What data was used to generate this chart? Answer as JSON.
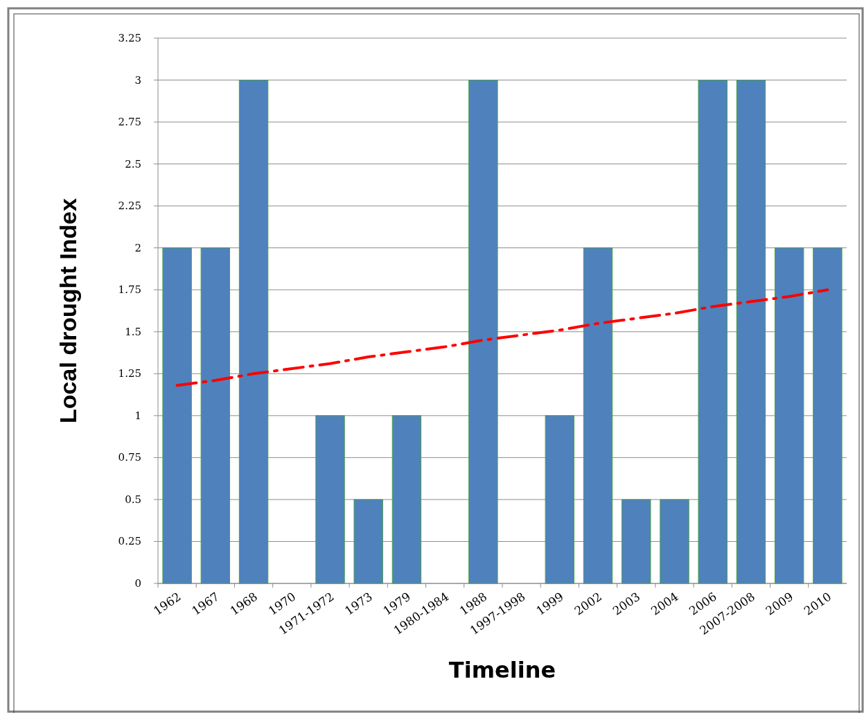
{
  "chart_data": {
    "type": "bar",
    "xlabel": "Timeline",
    "ylabel": "Local drought Index",
    "categories": [
      "1962",
      "1967",
      "1968",
      "1970",
      "1971-1972",
      "1973",
      "1979",
      "1980-1984",
      "1988",
      "1997-1998",
      "1999",
      "2002",
      "2003",
      "2004",
      "2006",
      "2007-2008",
      "2009",
      "2010"
    ],
    "series": [
      {
        "color": "#4f81bd",
        "values": [
          2,
          2,
          3,
          0,
          1,
          0.5,
          1,
          0,
          3,
          0,
          1,
          2,
          0.5,
          0.5,
          3,
          3,
          2,
          2
        ]
      },
      {
        "type": "line",
        "color": "#ff0000",
        "values": [
          1.18,
          1.21,
          1.25,
          1.28,
          1.31,
          1.35,
          1.38,
          1.41,
          1.45,
          1.48,
          1.51,
          1.55,
          1.58,
          1.61,
          1.65,
          1.68,
          1.71,
          1.75
        ],
        "line_style": "dashed"
      }
    ],
    "ylim": [
      0,
      3.25
    ],
    "yticks": [
      0,
      0.25,
      0.5,
      0.75,
      1,
      1.25,
      1.5,
      1.75,
      2,
      2.25,
      2.5,
      2.75,
      3,
      3.25
    ],
    "grid": "y"
  }
}
